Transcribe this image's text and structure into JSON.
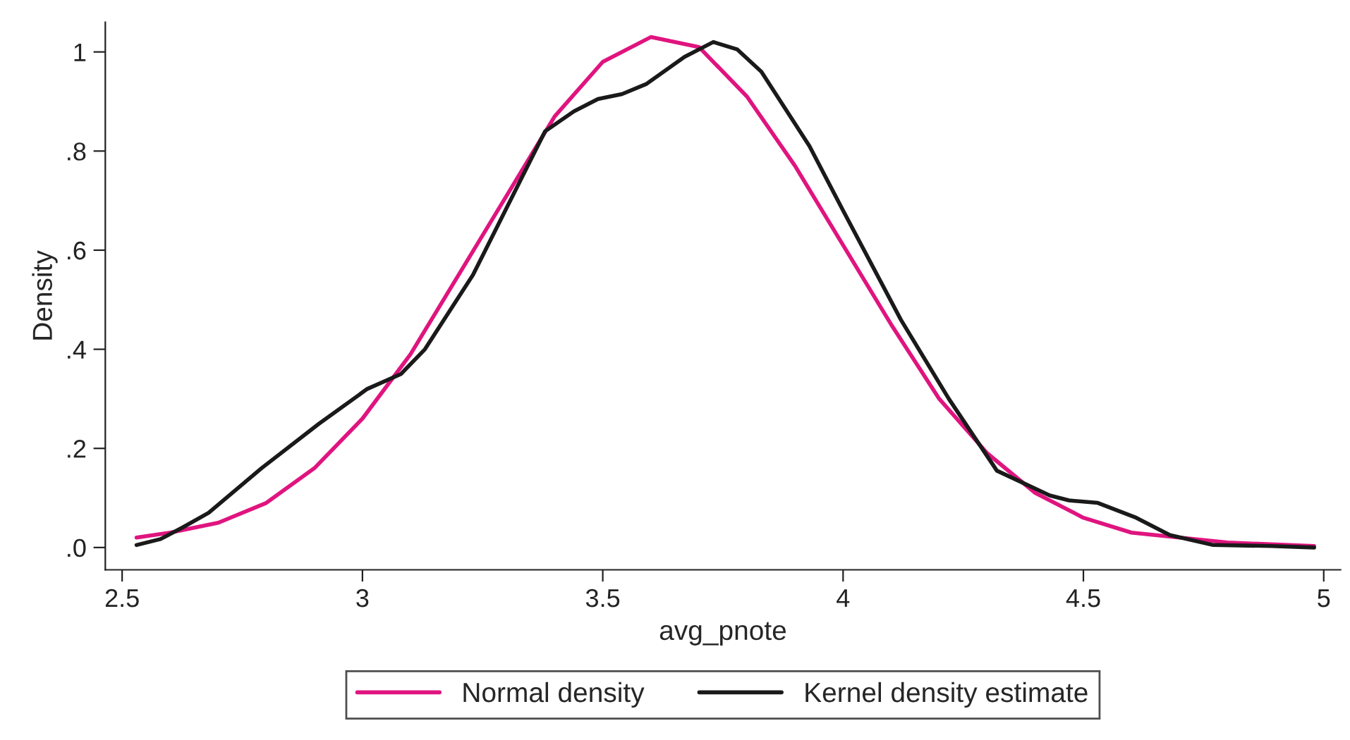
{
  "chart_data": {
    "type": "line",
    "xlabel": "avg_pnote",
    "ylabel": "Density",
    "xlim": [
      2.465,
      5.035
    ],
    "ylim": [
      -0.045,
      1.06
    ],
    "xticks": [
      2.5,
      3,
      3.5,
      4,
      4.5,
      5
    ],
    "yticks": [
      {
        "value": 0,
        "label": ".0"
      },
      {
        "value": 0.2,
        "label": ".2"
      },
      {
        "value": 0.4,
        "label": ".4"
      },
      {
        "value": 0.6,
        "label": ".6"
      },
      {
        "value": 0.8,
        "label": ".8"
      },
      {
        "value": 1,
        "label": "1"
      }
    ],
    "grid": false,
    "legend": "bottom",
    "marker": "none",
    "line_style": "solid",
    "series": [
      {
        "name": "Normal density",
        "color": "#e0147f",
        "x": [
          2.53,
          2.6,
          2.7,
          2.8,
          2.9,
          3.0,
          3.1,
          3.2,
          3.3,
          3.4,
          3.5,
          3.6,
          3.7,
          3.8,
          3.9,
          4.0,
          4.1,
          4.2,
          4.3,
          4.4,
          4.5,
          4.6,
          4.7,
          4.8,
          4.98
        ],
        "values": [
          0.02,
          0.03,
          0.05,
          0.09,
          0.16,
          0.26,
          0.39,
          0.55,
          0.71,
          0.87,
          0.98,
          1.03,
          1.01,
          0.91,
          0.77,
          0.61,
          0.45,
          0.3,
          0.19,
          0.11,
          0.06,
          0.03,
          0.02,
          0.01,
          0.003
        ]
      },
      {
        "name": "Kernel density estimate",
        "color": "#1a1a1a",
        "x": [
          2.53,
          2.58,
          2.625,
          2.68,
          2.79,
          2.91,
          3.01,
          3.08,
          3.13,
          3.23,
          3.38,
          3.44,
          3.49,
          3.54,
          3.59,
          3.67,
          3.73,
          3.78,
          3.83,
          3.93,
          4.0,
          4.12,
          4.22,
          4.32,
          4.43,
          4.47,
          4.53,
          4.61,
          4.68,
          4.77,
          4.89,
          4.98
        ],
        "values": [
          0.005,
          0.017,
          0.04,
          0.07,
          0.16,
          0.25,
          0.32,
          0.35,
          0.4,
          0.55,
          0.84,
          0.88,
          0.905,
          0.915,
          0.935,
          0.99,
          1.02,
          1.005,
          0.96,
          0.81,
          0.68,
          0.46,
          0.3,
          0.155,
          0.105,
          0.095,
          0.09,
          0.06,
          0.025,
          0.005,
          0.003,
          0.0
        ]
      }
    ]
  }
}
